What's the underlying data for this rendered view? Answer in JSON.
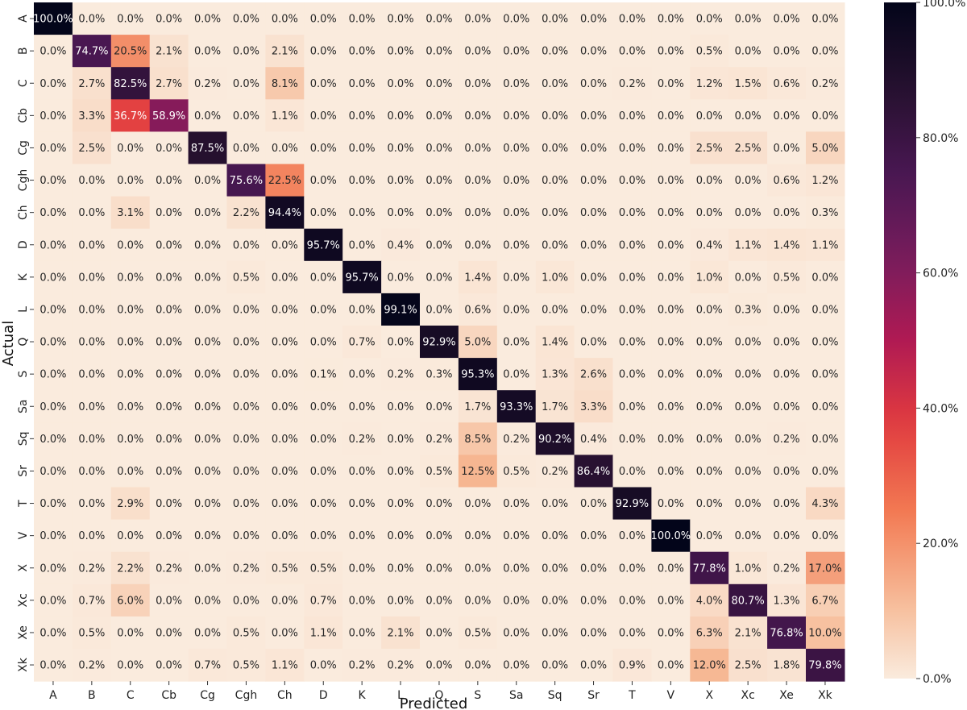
{
  "chart_data": {
    "type": "heatmap",
    "title": "",
    "xlabel": "Predicted",
    "ylabel": "Actual",
    "categories": [
      "A",
      "B",
      "C",
      "Cb",
      "Cg",
      "Cgh",
      "Ch",
      "D",
      "K",
      "L",
      "Q",
      "S",
      "Sa",
      "Sq",
      "Sr",
      "T",
      "V",
      "X",
      "Xc",
      "Xe",
      "Xk"
    ],
    "value_format": "percent_one_decimal",
    "colormap": "rocket_r",
    "colorbar": {
      "range": [
        0,
        100
      ],
      "ticks": [
        0,
        20,
        40,
        60,
        80,
        100
      ],
      "tick_labels": [
        "0.0%",
        "20.0%",
        "40.0%",
        "60.0%",
        "80.0%",
        "100.0%"
      ]
    },
    "values": [
      [
        100.0,
        0.0,
        0.0,
        0.0,
        0.0,
        0.0,
        0.0,
        0.0,
        0.0,
        0.0,
        0.0,
        0.0,
        0.0,
        0.0,
        0.0,
        0.0,
        0.0,
        0.0,
        0.0,
        0.0,
        0.0
      ],
      [
        0.0,
        74.7,
        20.5,
        2.1,
        0.0,
        0.0,
        2.1,
        0.0,
        0.0,
        0.0,
        0.0,
        0.0,
        0.0,
        0.0,
        0.0,
        0.0,
        0.0,
        0.5,
        0.0,
        0.0,
        0.0
      ],
      [
        0.0,
        2.7,
        82.5,
        2.7,
        0.2,
        0.0,
        8.1,
        0.0,
        0.0,
        0.0,
        0.0,
        0.0,
        0.0,
        0.0,
        0.0,
        0.2,
        0.0,
        1.2,
        1.5,
        0.6,
        0.2
      ],
      [
        0.0,
        3.3,
        36.7,
        58.9,
        0.0,
        0.0,
        1.1,
        0.0,
        0.0,
        0.0,
        0.0,
        0.0,
        0.0,
        0.0,
        0.0,
        0.0,
        0.0,
        0.0,
        0.0,
        0.0,
        0.0
      ],
      [
        0.0,
        2.5,
        0.0,
        0.0,
        87.5,
        0.0,
        0.0,
        0.0,
        0.0,
        0.0,
        0.0,
        0.0,
        0.0,
        0.0,
        0.0,
        0.0,
        0.0,
        2.5,
        2.5,
        0.0,
        5.0
      ],
      [
        0.0,
        0.0,
        0.0,
        0.0,
        0.0,
        75.6,
        22.5,
        0.0,
        0.0,
        0.0,
        0.0,
        0.0,
        0.0,
        0.0,
        0.0,
        0.0,
        0.0,
        0.0,
        0.0,
        0.6,
        1.2
      ],
      [
        0.0,
        0.0,
        3.1,
        0.0,
        0.0,
        2.2,
        94.4,
        0.0,
        0.0,
        0.0,
        0.0,
        0.0,
        0.0,
        0.0,
        0.0,
        0.0,
        0.0,
        0.0,
        0.0,
        0.0,
        0.3
      ],
      [
        0.0,
        0.0,
        0.0,
        0.0,
        0.0,
        0.0,
        0.0,
        95.7,
        0.0,
        0.4,
        0.0,
        0.0,
        0.0,
        0.0,
        0.0,
        0.0,
        0.0,
        0.4,
        1.1,
        1.4,
        1.1
      ],
      [
        0.0,
        0.0,
        0.0,
        0.0,
        0.0,
        0.5,
        0.0,
        0.0,
        95.7,
        0.0,
        0.0,
        1.4,
        0.0,
        1.0,
        0.0,
        0.0,
        0.0,
        1.0,
        0.0,
        0.5,
        0.0
      ],
      [
        0.0,
        0.0,
        0.0,
        0.0,
        0.0,
        0.0,
        0.0,
        0.0,
        0.0,
        99.1,
        0.0,
        0.6,
        0.0,
        0.0,
        0.0,
        0.0,
        0.0,
        0.0,
        0.3,
        0.0,
        0.0
      ],
      [
        0.0,
        0.0,
        0.0,
        0.0,
        0.0,
        0.0,
        0.0,
        0.0,
        0.7,
        0.0,
        92.9,
        5.0,
        0.0,
        1.4,
        0.0,
        0.0,
        0.0,
        0.0,
        0.0,
        0.0,
        0.0
      ],
      [
        0.0,
        0.0,
        0.0,
        0.0,
        0.0,
        0.0,
        0.0,
        0.1,
        0.0,
        0.2,
        0.3,
        95.3,
        0.0,
        1.3,
        2.6,
        0.0,
        0.0,
        0.0,
        0.0,
        0.0,
        0.0
      ],
      [
        0.0,
        0.0,
        0.0,
        0.0,
        0.0,
        0.0,
        0.0,
        0.0,
        0.0,
        0.0,
        0.0,
        1.7,
        93.3,
        1.7,
        3.3,
        0.0,
        0.0,
        0.0,
        0.0,
        0.0,
        0.0
      ],
      [
        0.0,
        0.0,
        0.0,
        0.0,
        0.0,
        0.0,
        0.0,
        0.0,
        0.2,
        0.0,
        0.2,
        8.5,
        0.2,
        90.2,
        0.4,
        0.0,
        0.0,
        0.0,
        0.0,
        0.2,
        0.0
      ],
      [
        0.0,
        0.0,
        0.0,
        0.0,
        0.0,
        0.0,
        0.0,
        0.0,
        0.0,
        0.0,
        0.5,
        12.5,
        0.5,
        0.2,
        86.4,
        0.0,
        0.0,
        0.0,
        0.0,
        0.0,
        0.0
      ],
      [
        0.0,
        0.0,
        2.9,
        0.0,
        0.0,
        0.0,
        0.0,
        0.0,
        0.0,
        0.0,
        0.0,
        0.0,
        0.0,
        0.0,
        0.0,
        92.9,
        0.0,
        0.0,
        0.0,
        0.0,
        4.3
      ],
      [
        0.0,
        0.0,
        0.0,
        0.0,
        0.0,
        0.0,
        0.0,
        0.0,
        0.0,
        0.0,
        0.0,
        0.0,
        0.0,
        0.0,
        0.0,
        0.0,
        100.0,
        0.0,
        0.0,
        0.0,
        0.0
      ],
      [
        0.0,
        0.2,
        2.2,
        0.2,
        0.0,
        0.2,
        0.5,
        0.5,
        0.0,
        0.0,
        0.0,
        0.0,
        0.0,
        0.0,
        0.0,
        0.0,
        0.0,
        77.8,
        1.0,
        0.2,
        17.0
      ],
      [
        0.0,
        0.7,
        6.0,
        0.0,
        0.0,
        0.0,
        0.0,
        0.7,
        0.0,
        0.0,
        0.0,
        0.0,
        0.0,
        0.0,
        0.0,
        0.0,
        0.0,
        4.0,
        80.7,
        1.3,
        6.7
      ],
      [
        0.0,
        0.5,
        0.0,
        0.0,
        0.0,
        0.5,
        0.0,
        1.1,
        0.0,
        2.1,
        0.0,
        0.5,
        0.0,
        0.0,
        0.0,
        0.0,
        0.0,
        6.3,
        2.1,
        76.8,
        10.0
      ],
      [
        0.0,
        0.2,
        0.0,
        0.0,
        0.7,
        0.5,
        1.1,
        0.0,
        0.2,
        0.2,
        0.0,
        0.0,
        0.0,
        0.0,
        0.0,
        0.9,
        0.0,
        12.0,
        2.5,
        1.8,
        79.8
      ]
    ]
  }
}
